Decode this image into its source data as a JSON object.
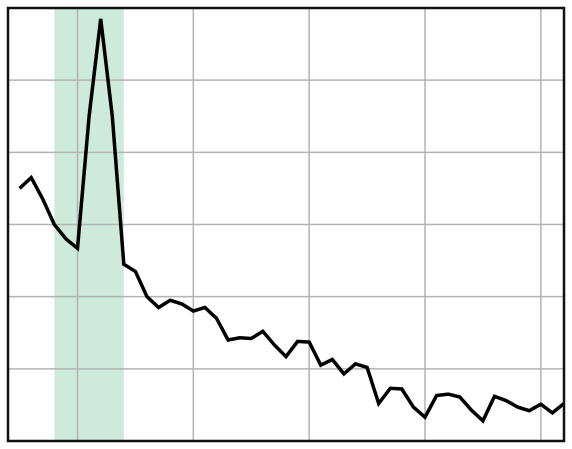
{
  "chart_data": {
    "type": "line",
    "title": "",
    "xlabel": "",
    "ylabel": "",
    "grid": true,
    "xlim": [
      0,
      48
    ],
    "ylim": [
      0,
      6
    ],
    "highlight_band": {
      "x_start": 4,
      "x_end": 10,
      "color": "#cdeadb"
    },
    "series": [
      {
        "color": "#000000",
        "x": [
          1,
          2,
          3,
          4,
          5,
          6,
          7,
          8,
          9,
          10,
          11,
          12,
          13,
          14,
          15,
          16,
          17,
          18,
          19,
          20,
          21,
          22,
          23,
          24,
          25,
          26,
          27,
          28,
          29,
          30,
          31,
          32,
          33,
          34,
          35,
          36,
          37,
          38,
          39,
          40,
          41,
          42,
          43,
          44,
          45,
          46,
          47,
          48
        ],
        "values": [
          3.5,
          3.65,
          3.35,
          3.0,
          2.8,
          2.67,
          4.5,
          5.85,
          4.5,
          2.45,
          2.35,
          2.0,
          1.85,
          1.95,
          1.9,
          1.8,
          1.85,
          1.7,
          1.4,
          1.43,
          1.42,
          1.52,
          1.33,
          1.17,
          1.38,
          1.37,
          1.05,
          1.13,
          0.93,
          1.07,
          1.02,
          0.52,
          0.73,
          0.72,
          0.47,
          0.33,
          0.63,
          0.65,
          0.61,
          0.43,
          0.28,
          0.62,
          0.56,
          0.47,
          0.42,
          0.51,
          0.39,
          0.52
        ]
      }
    ]
  }
}
